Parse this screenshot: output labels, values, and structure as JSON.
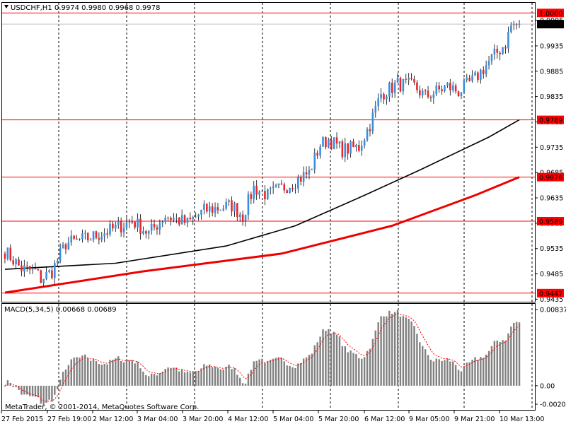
{
  "chart_data": {
    "type": "candlestick",
    "symbol_header": "USDCHF,H1",
    "ohlc_header": "0.9974 0.9980 0.9968 0.9978",
    "last_price": 0.9978,
    "price_ticks": [
      0.9435,
      0.9485,
      0.9535,
      0.9585,
      0.9635,
      0.9685,
      0.9735,
      0.9785,
      0.9835,
      0.9885,
      0.9935,
      0.9985
    ],
    "tick_labels": [
      "0.9435",
      "0.9485",
      "0.9535",
      "0.9585",
      "0.9635",
      "0.9685",
      "0.9735",
      "0.9785",
      "0.9835",
      "0.9885",
      "0.9935",
      "0.9985"
    ],
    "time_labels": [
      "27 Feb 2015",
      "27 Feb 19:00",
      "2 Mar 12:00",
      "3 Mar 04:00",
      "3 Mar 20:00",
      "4 Mar 12:00",
      "5 Mar 04:00",
      "5 Mar 20:00",
      "6 Mar 12:00",
      "9 Mar 05:00",
      "9 Mar 21:00",
      "10 Mar 13:00"
    ],
    "horizontal_levels": [
      {
        "value": 1.0,
        "label": "1.0000",
        "color": "#ff0000"
      },
      {
        "value": 0.9789,
        "label": "0.9789",
        "color": "#ff0000"
      },
      {
        "value": 0.9676,
        "label": "0.9676",
        "color": "#ff0000"
      },
      {
        "value": 0.9589,
        "label": "0.9589",
        "color": "#ff0000"
      },
      {
        "value": 0.9447,
        "label": "0.9447",
        "color": "#ff0000"
      }
    ],
    "anchors": [
      [
        0,
        0.953
      ],
      [
        6,
        0.9495
      ],
      [
        11,
        0.949
      ],
      [
        13,
        0.9475
      ],
      [
        17,
        0.949
      ],
      [
        22,
        0.9545
      ],
      [
        30,
        0.9555
      ],
      [
        40,
        0.9575
      ],
      [
        46,
        0.959
      ],
      [
        52,
        0.9565
      ],
      [
        58,
        0.96
      ],
      [
        66,
        0.9585
      ],
      [
        72,
        0.961
      ],
      [
        82,
        0.962
      ],
      [
        86,
        0.96
      ],
      [
        90,
        0.9655
      ],
      [
        95,
        0.964
      ],
      [
        104,
        0.9665
      ],
      [
        110,
        0.9685
      ],
      [
        114,
        0.974
      ],
      [
        117,
        0.975
      ],
      [
        122,
        0.973
      ],
      [
        128,
        0.9735
      ],
      [
        132,
        0.978
      ],
      [
        136,
        0.984
      ],
      [
        142,
        0.986
      ],
      [
        148,
        0.9855
      ],
      [
        152,
        0.9835
      ],
      [
        160,
        0.9855
      ],
      [
        164,
        0.9845
      ],
      [
        170,
        0.987
      ],
      [
        176,
        0.991
      ],
      [
        181,
        0.994
      ],
      [
        183,
        0.9975
      ],
      [
        186,
        0.9978
      ]
    ],
    "bar_count": 187,
    "seed": 7,
    "ma_colors": {
      "fast": "#000000",
      "slow": "#ee0000"
    },
    "colors": {
      "bull": "#3b8ede",
      "bear": "#e8272b",
      "wick": "#000000",
      "macd_hist": "#808080",
      "macd_signal": "#ff0000"
    },
    "macd": {
      "header": "MACD(5,34,5) 0.00668 0.00689",
      "ticks": [
        0.00837,
        0.0,
        -0.00203
      ],
      "tick_labels": [
        "0.00837",
        "0.00",
        "-0.00203"
      ]
    },
    "footer": "MetaTrader, © 2001-2014, MetaQuotes Software Corp."
  }
}
